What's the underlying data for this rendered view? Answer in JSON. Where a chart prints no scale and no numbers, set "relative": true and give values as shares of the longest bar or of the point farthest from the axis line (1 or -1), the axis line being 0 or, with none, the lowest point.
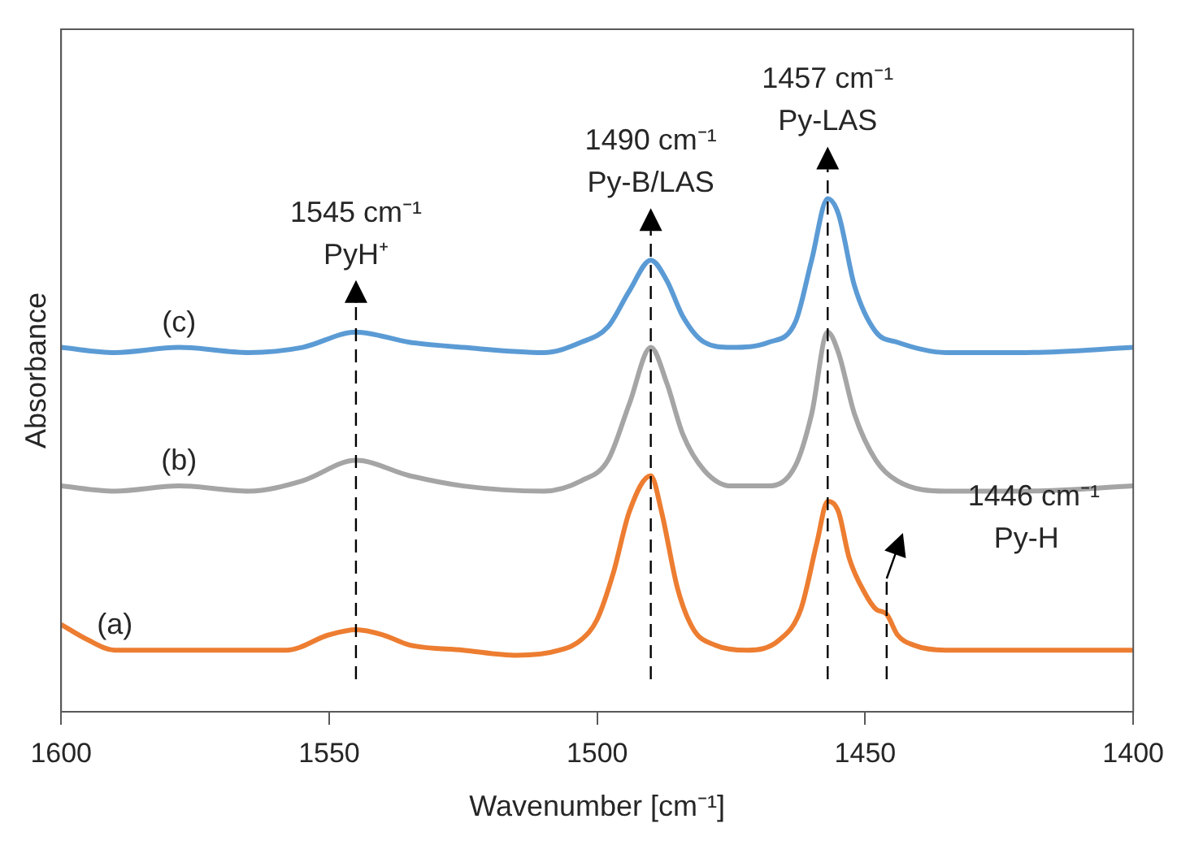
{
  "chart_data": {
    "type": "line",
    "relative": true,
    "xlabel": "Wavenumber [cm⁻¹]",
    "ylabel": "Absorbance",
    "xlim": [
      1600,
      1400
    ],
    "xticks": [
      1600,
      1550,
      1500,
      1450,
      1400
    ],
    "legend": false,
    "grid": false,
    "marker": "none",
    "line_style": "solid",
    "series": [
      {
        "name": "(a)",
        "color": "#ed7d31",
        "x": [
          1600,
          1595,
          1590,
          1585,
          1578,
          1572,
          1565,
          1558,
          1550,
          1545,
          1540,
          1535,
          1525,
          1515,
          1507,
          1503,
          1500,
          1497,
          1494,
          1490,
          1488,
          1485,
          1482,
          1478,
          1472,
          1466,
          1462,
          1459,
          1457,
          1455,
          1453,
          1450,
          1448,
          1446,
          1444,
          1441,
          1435,
          1420,
          1400
        ],
        "values": [
          0.17,
          0.14,
          0.12,
          0.12,
          0.12,
          0.12,
          0.12,
          0.12,
          0.15,
          0.16,
          0.15,
          0.13,
          0.12,
          0.11,
          0.12,
          0.14,
          0.18,
          0.27,
          0.39,
          0.46,
          0.39,
          0.24,
          0.16,
          0.13,
          0.12,
          0.14,
          0.2,
          0.33,
          0.41,
          0.39,
          0.3,
          0.23,
          0.2,
          0.19,
          0.15,
          0.13,
          0.12,
          0.12,
          0.12
        ]
      },
      {
        "name": "(b)",
        "color": "#a5a5a5",
        "x": [
          1600,
          1590,
          1578,
          1565,
          1555,
          1545,
          1535,
          1525,
          1510,
          1503,
          1498,
          1494,
          1490,
          1487,
          1484,
          1480,
          1475,
          1468,
          1463,
          1460,
          1457,
          1455,
          1452,
          1448,
          1444,
          1435,
          1420,
          1400
        ],
        "values": [
          0.44,
          0.43,
          0.44,
          0.43,
          0.45,
          0.49,
          0.46,
          0.44,
          0.43,
          0.45,
          0.49,
          0.6,
          0.71,
          0.64,
          0.54,
          0.47,
          0.44,
          0.44,
          0.48,
          0.58,
          0.74,
          0.7,
          0.58,
          0.49,
          0.45,
          0.43,
          0.43,
          0.44
        ]
      },
      {
        "name": "(c)",
        "color": "#5b9bd5",
        "x": [
          1600,
          1590,
          1578,
          1565,
          1555,
          1545,
          1535,
          1525,
          1510,
          1503,
          1498,
          1494,
          1490,
          1487,
          1484,
          1480,
          1475,
          1468,
          1463,
          1460,
          1457,
          1455,
          1452,
          1448,
          1444,
          1435,
          1420,
          1400
        ],
        "values": [
          0.71,
          0.7,
          0.71,
          0.7,
          0.71,
          0.74,
          0.72,
          0.71,
          0.7,
          0.72,
          0.75,
          0.82,
          0.88,
          0.84,
          0.77,
          0.72,
          0.71,
          0.72,
          0.76,
          0.88,
          1,
          0.97,
          0.83,
          0.74,
          0.72,
          0.7,
          0.7,
          0.71
        ]
      }
    ],
    "ref_lines": [
      {
        "axis": "x",
        "value": 1545,
        "label": "1545 cm⁻¹\nPyH⁺",
        "line_style": "dashed",
        "color": "#000000"
      },
      {
        "axis": "x",
        "value": 1490,
        "label": "1490 cm⁻¹\nPy-B/LAS",
        "line_style": "dashed",
        "color": "#000000"
      },
      {
        "axis": "x",
        "value": 1457,
        "label": "1457 cm⁻¹\nPy-LAS",
        "line_style": "dashed",
        "color": "#000000"
      },
      {
        "axis": "x",
        "value": 1446,
        "label": "1446 cm⁻¹\nPy-H",
        "line_style": "dashed",
        "color": "#000000"
      }
    ]
  }
}
